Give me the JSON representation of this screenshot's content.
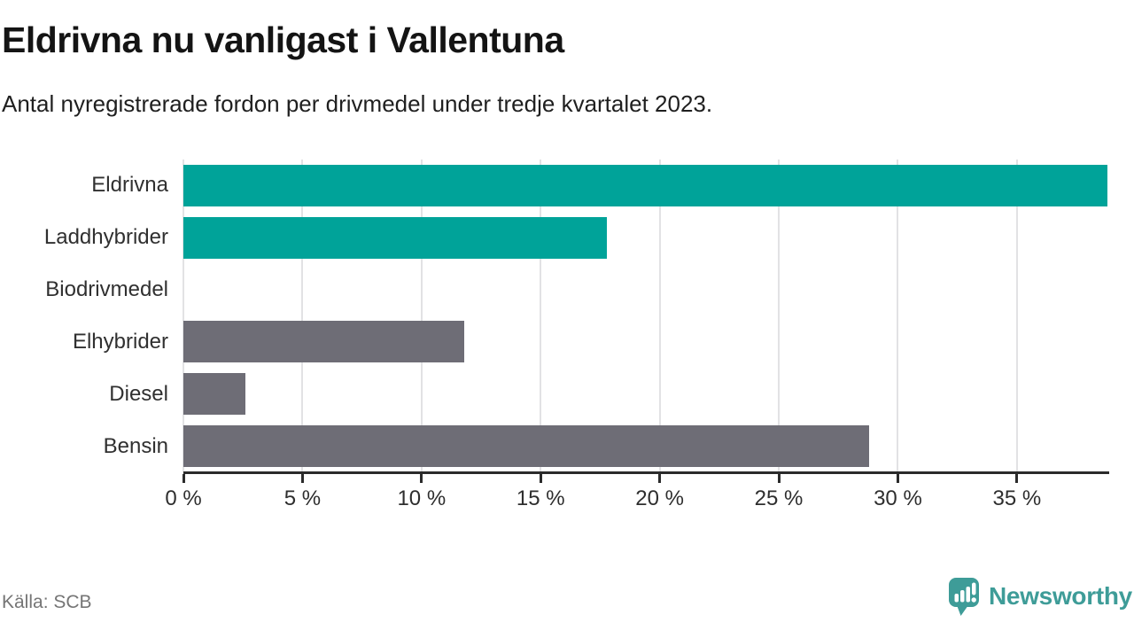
{
  "header": {
    "title": "Eldrivna nu vanligast i Vallentuna",
    "subtitle": "Antal nyregistrerade fordon per drivmedel under tredje kvartalet 2023."
  },
  "footer": {
    "source": "Källa: SCB",
    "brand": "Newsworthy",
    "brand_color": "#3e9c98",
    "brand_icon": "speech-bubble-bar-chart-icon"
  },
  "chart_data": {
    "type": "bar",
    "orientation": "horizontal",
    "title": "Eldrivna nu vanligast i Vallentuna",
    "subtitle": "Antal nyregistrerade fordon per drivmedel under tredje kvartalet 2023.",
    "categories": [
      "Eldrivna",
      "Laddhybrider",
      "Biodrivmedel",
      "Elhybrider",
      "Diesel",
      "Bensin"
    ],
    "values": [
      38.8,
      17.8,
      0,
      11.8,
      2.6,
      28.8
    ],
    "unit": "%",
    "bar_colors": [
      "#00a399",
      "#00a399",
      "#6e6d76",
      "#6e6d76",
      "#6e6d76",
      "#6e6d76"
    ],
    "highlight_color": "#00a399",
    "default_color": "#6e6d76",
    "xlim": [
      0,
      38.8
    ],
    "xticks": [
      0,
      5,
      10,
      15,
      20,
      25,
      30,
      35
    ],
    "xtick_labels": [
      "0 %",
      "5 %",
      "10 %",
      "15 %",
      "20 %",
      "25 %",
      "30 %",
      "35 %"
    ],
    "grid": "vertical",
    "grid_color": "#e2e2e4",
    "axis_color": "#2b2b2b",
    "legend": "none"
  }
}
